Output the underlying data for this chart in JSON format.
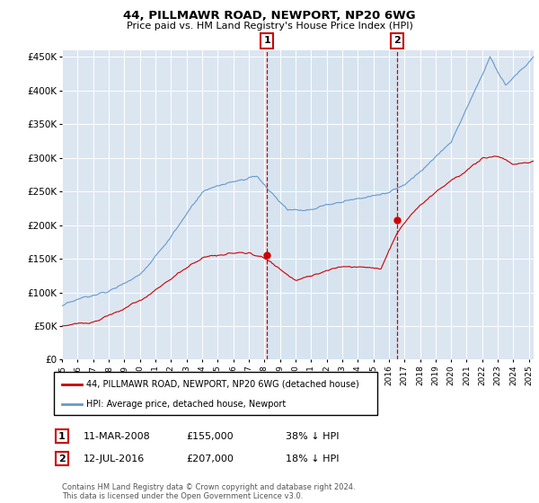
{
  "title": "44, PILLMAWR ROAD, NEWPORT, NP20 6WG",
  "subtitle": "Price paid vs. HM Land Registry's House Price Index (HPI)",
  "legend_line1": "44, PILLMAWR ROAD, NEWPORT, NP20 6WG (detached house)",
  "legend_line2": "HPI: Average price, detached house, Newport",
  "footer": "Contains HM Land Registry data © Crown copyright and database right 2024.\nThis data is licensed under the Open Government Licence v3.0.",
  "annotation1_label": "1",
  "annotation1_date": "11-MAR-2008",
  "annotation1_price": "£155,000",
  "annotation1_pct": "38% ↓ HPI",
  "annotation2_label": "2",
  "annotation2_date": "12-JUL-2016",
  "annotation2_price": "£207,000",
  "annotation2_pct": "18% ↓ HPI",
  "red_color": "#cc0000",
  "blue_color": "#6699cc",
  "shade_color": "#d6e4f0",
  "background_color": "#dce6f1",
  "ylim_min": 0,
  "ylim_max": 460000,
  "yticks": [
    0,
    50000,
    100000,
    150000,
    200000,
    250000,
    300000,
    350000,
    400000,
    450000
  ],
  "x_start_year": 1995,
  "x_end_year": 2025,
  "vline1_year": 2008.17,
  "vline2_year": 2016.54,
  "sale1_year": 2008.17,
  "sale1_price": 155000,
  "sale2_year": 2016.54,
  "sale2_price": 207000
}
